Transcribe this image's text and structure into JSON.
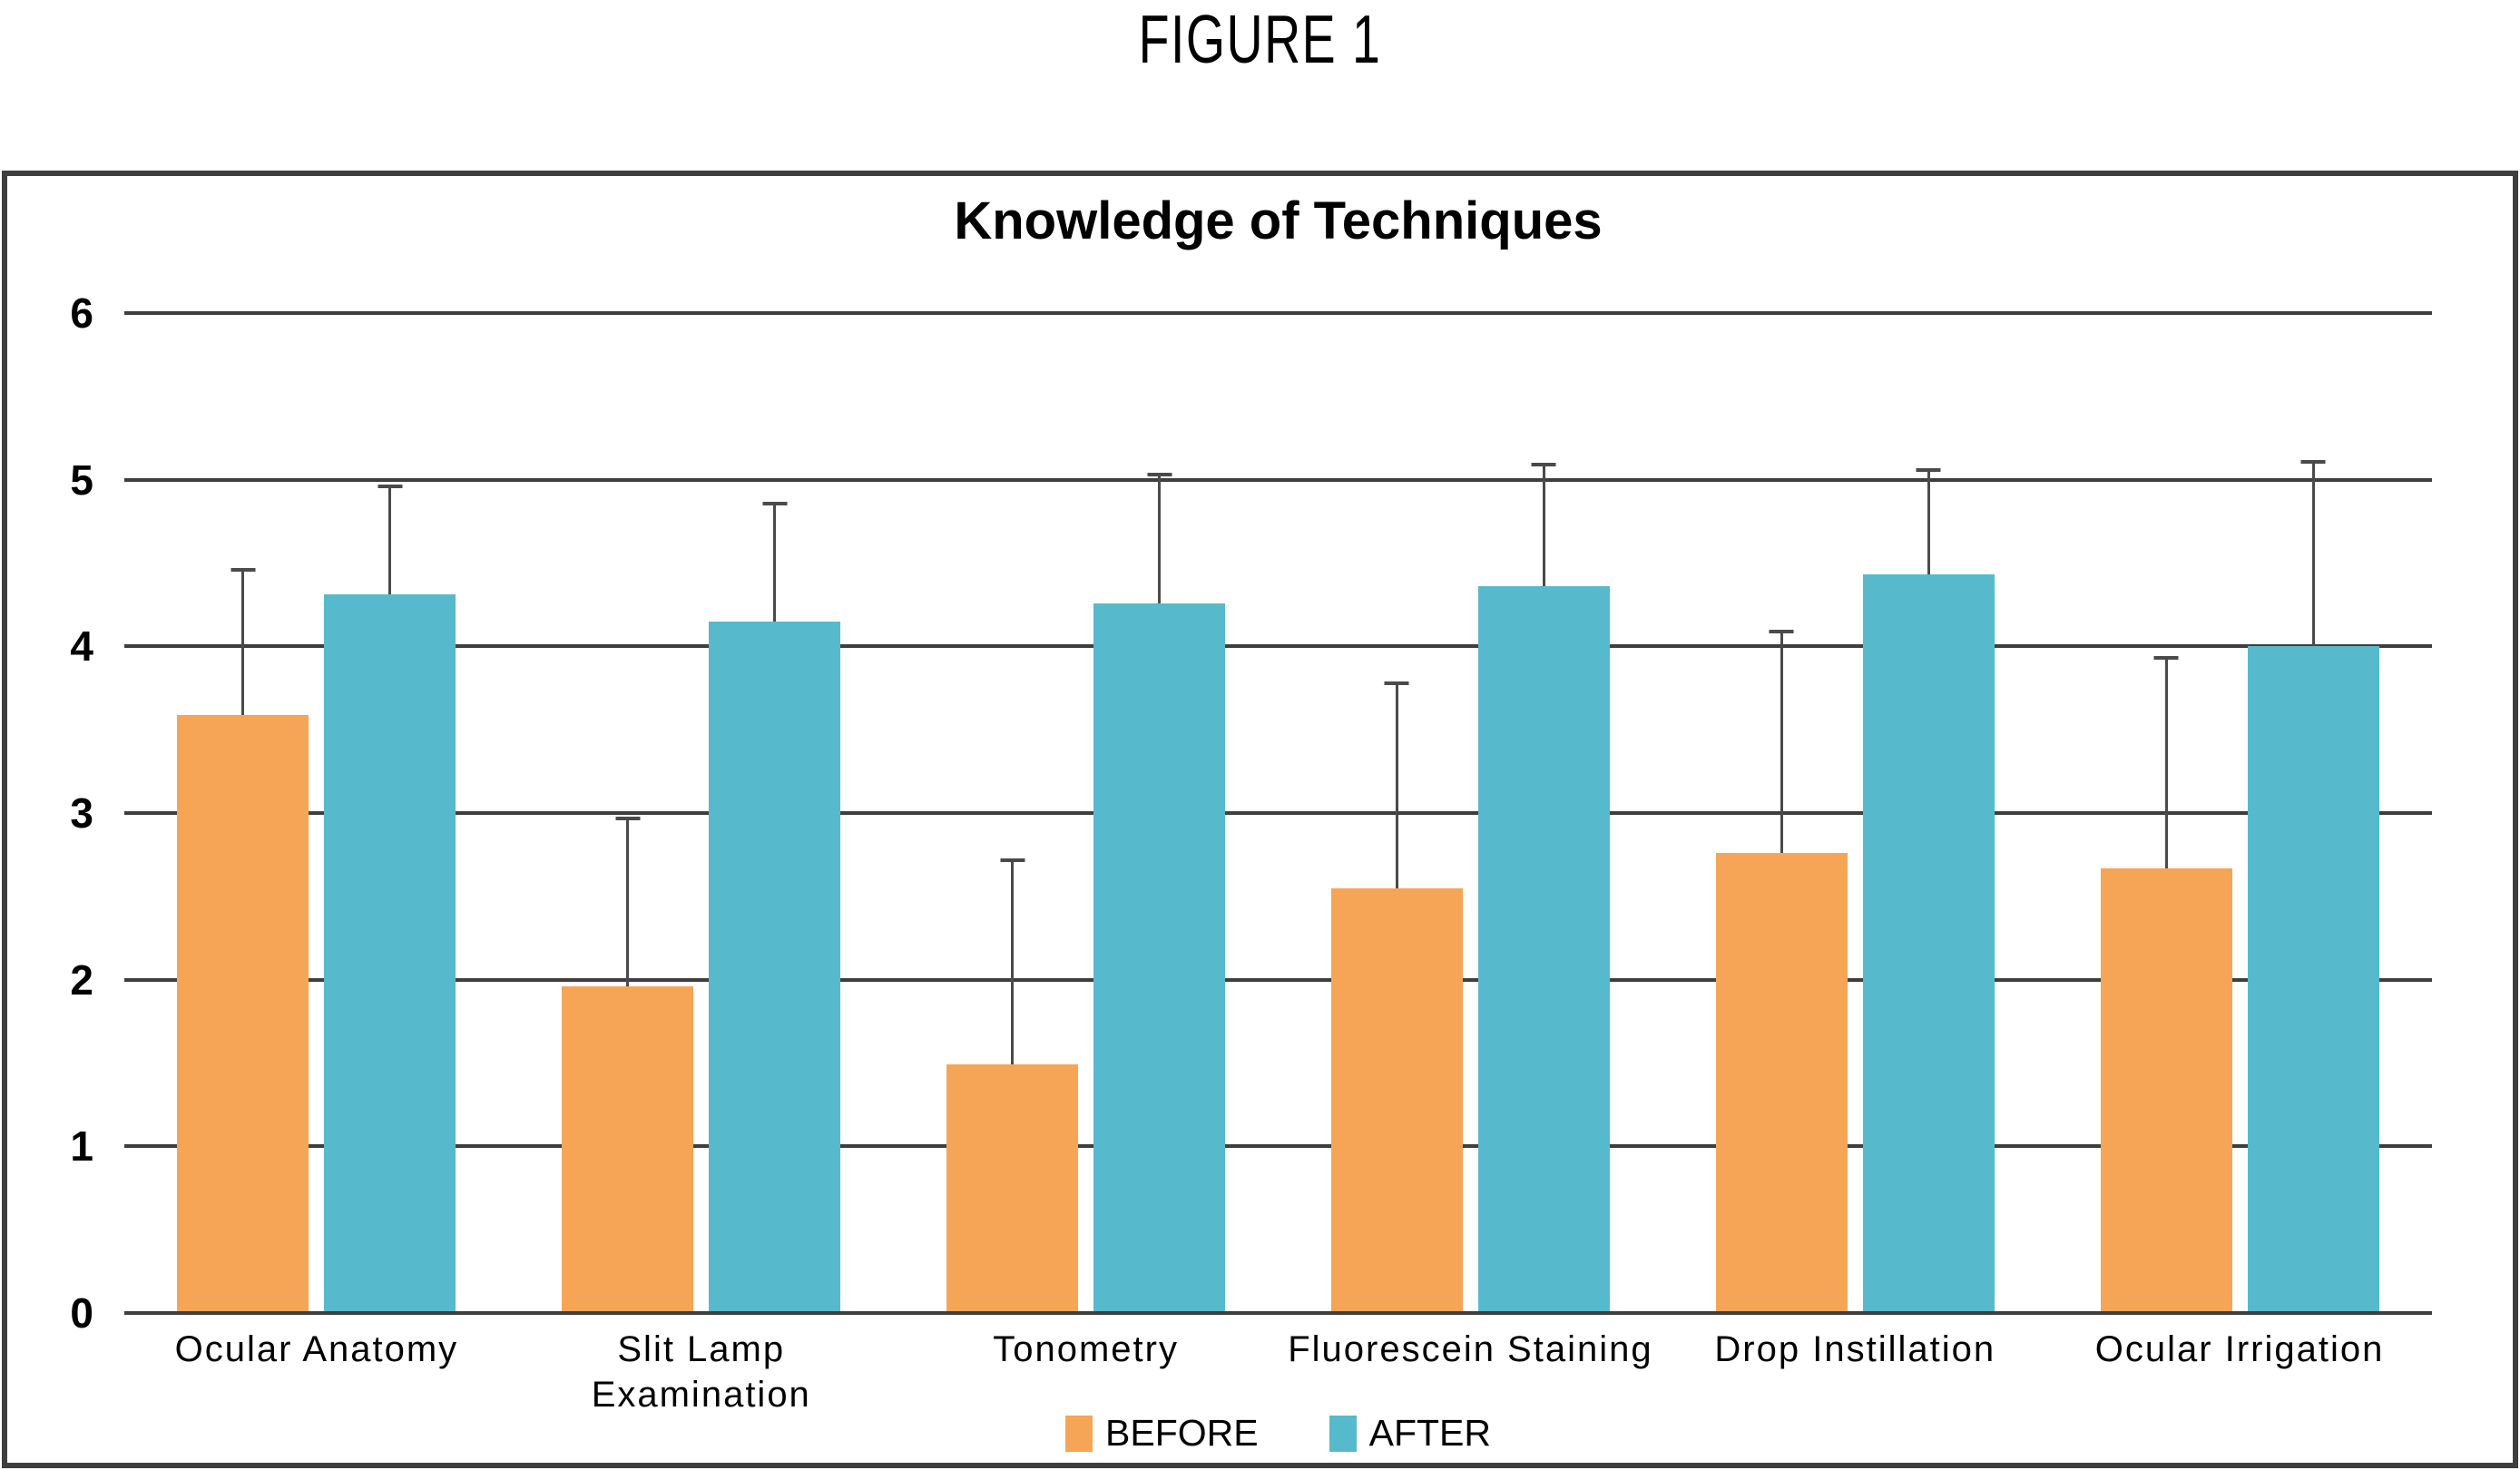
{
  "figure_label": "FIGURE 1",
  "chart_data": {
    "type": "bar",
    "title": "Knowledge of Techniques",
    "categories": [
      "Ocular Anatomy",
      "Slit Lamp Examination",
      "Tonometry",
      "Fluorescein Staining",
      "Drop Instillation",
      "Ocular Irrigation"
    ],
    "series": [
      {
        "name": "BEFORE",
        "color": "#F6A556",
        "values": [
          3.59,
          1.96,
          1.49,
          2.55,
          2.76,
          2.67
        ],
        "error_up": [
          0.88,
          1.02,
          1.24,
          1.24,
          1.34,
          1.27
        ]
      },
      {
        "name": "AFTER",
        "color": "#57BACC",
        "values": [
          4.31,
          4.15,
          4.26,
          4.36,
          4.43,
          4.0
        ],
        "error_up": [
          0.66,
          0.72,
          0.78,
          0.74,
          0.64,
          1.12
        ]
      }
    ],
    "xlabel": "",
    "ylabel": "",
    "ylim": [
      0,
      6
    ],
    "yticks": [
      0,
      1,
      2,
      3,
      4,
      5,
      6
    ],
    "grid": true,
    "legend_position": "bottom",
    "error_bars": "upper-only"
  },
  "colors": {
    "grid_and_border": "#3e3e3e",
    "error_bar": "#4a4a4a",
    "text": "#000000",
    "background": "#ffffff"
  }
}
